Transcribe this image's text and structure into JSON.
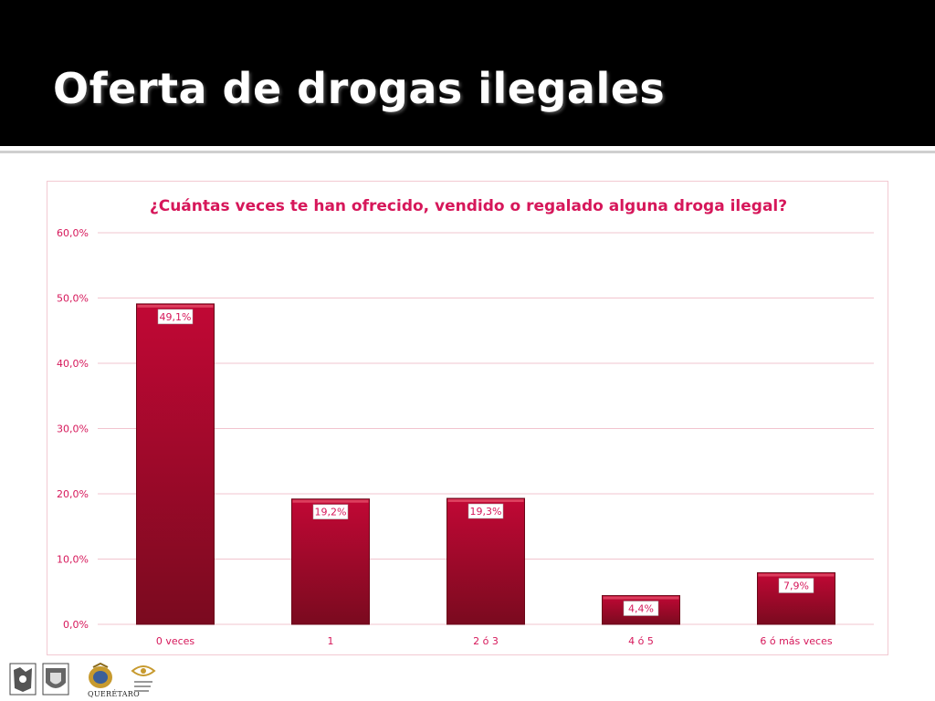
{
  "slide": {
    "title": "Oferta de drogas ilegales"
  },
  "logos": {
    "queretaro_label": "QUERÉTARO"
  },
  "colors": {
    "bar": "#b5052d",
    "bar_dark": "#7d0a20",
    "text": "#d6175a",
    "grid": "#f2c4cf"
  },
  "chart_data": {
    "type": "bar",
    "title": "¿Cuántas veces te han ofrecido, vendido o regalado alguna droga ilegal?",
    "categories": [
      "0 veces",
      "1",
      "2 ó 3",
      "4 ó 5",
      "6 ó más veces"
    ],
    "values": [
      49.1,
      19.2,
      19.3,
      4.4,
      7.9
    ],
    "data_labels": [
      "49,1%",
      "19,2%",
      "19,3%",
      "4,4%",
      "7,9%"
    ],
    "ylim": [
      0,
      60
    ],
    "yticks": [
      "0,0%",
      "10,0%",
      "20,0%",
      "30,0%",
      "40,0%",
      "50,0%",
      "60,0%"
    ],
    "xlabel": "",
    "ylabel": "",
    "grid": true,
    "legend": "none"
  }
}
